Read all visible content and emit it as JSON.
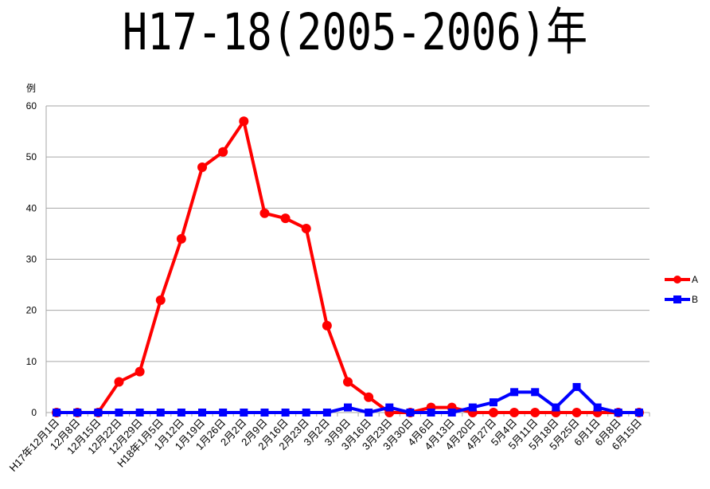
{
  "chart_data": {
    "type": "line",
    "title": "H17-18(2005-2006)年",
    "ylabel": "例",
    "ylim": [
      0,
      60
    ],
    "yticks": [
      0,
      10,
      20,
      30,
      40,
      50,
      60
    ],
    "grid": true,
    "legend": "right",
    "categories": [
      "H17年12月1日",
      "12月8日",
      "12月15日",
      "12月22日",
      "12月29日",
      "H18年1月5日",
      "1月12日",
      "1月19日",
      "1月26日",
      "2月2日",
      "2月9日",
      "2月16日",
      "2月23日",
      "3月2日",
      "3月9日",
      "3月16日",
      "3月23日",
      "3月30日",
      "4月6日",
      "4月13日",
      "4月20日",
      "4月27日",
      "5月4日",
      "5月11日",
      "5月18日",
      "5月25日",
      "6月1日",
      "6月8日",
      "6月15日"
    ],
    "series": [
      {
        "name": "A",
        "color": "#ff0000",
        "marker": "circle",
        "values": [
          0,
          0,
          0,
          6,
          8,
          22,
          34,
          48,
          51,
          57,
          39,
          38,
          36,
          17,
          6,
          3,
          0,
          0,
          1,
          1,
          0,
          0,
          0,
          0,
          0,
          0,
          0,
          0,
          0
        ]
      },
      {
        "name": "B",
        "color": "#0000ff",
        "marker": "square",
        "values": [
          0,
          0,
          0,
          0,
          0,
          0,
          0,
          0,
          0,
          0,
          0,
          0,
          0,
          0,
          1,
          0,
          1,
          0,
          0,
          0,
          1,
          2,
          4,
          4,
          1,
          5,
          1,
          0,
          0
        ]
      }
    ]
  }
}
